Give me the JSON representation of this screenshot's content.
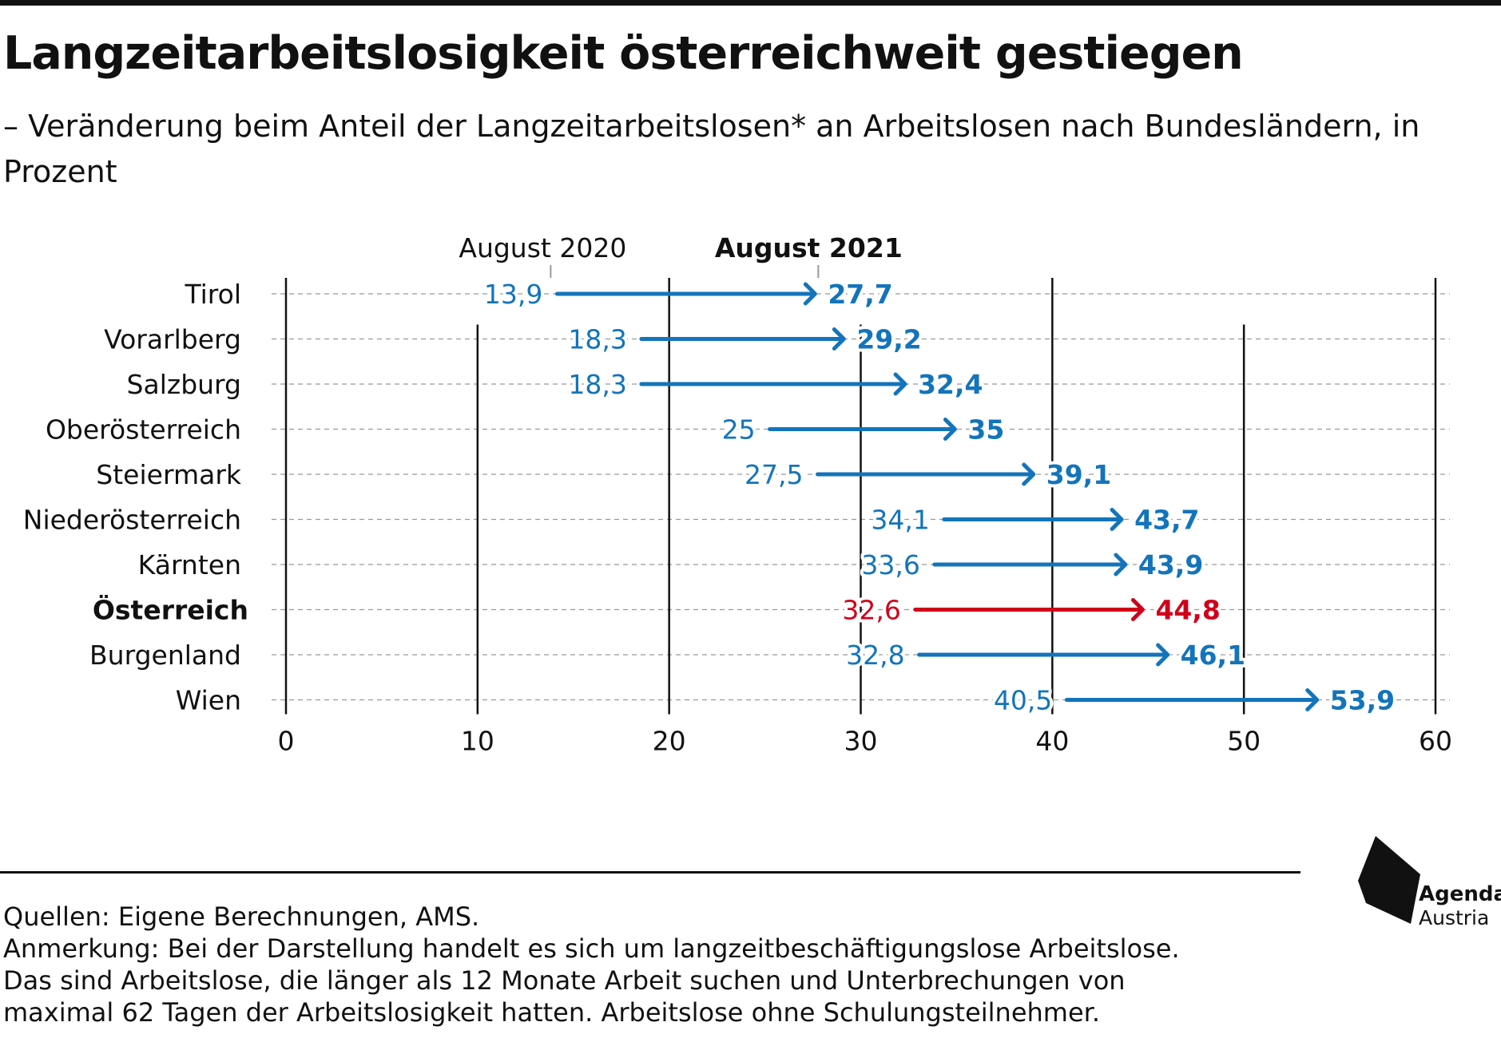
{
  "header": {
    "title": "Langzeitarbeitslosigkeit österreichweit gestiegen",
    "subtitle": "– Veränderung beim Anteil der Langzeitarbeitslosen* an Arbeitslosen nach Bundesländern, in Prozent"
  },
  "chart_data": {
    "type": "dumbbell-arrow",
    "series_labels": [
      "August 2020",
      "August 2021"
    ],
    "categories": [
      "Tirol",
      "Vorarlberg",
      "Salzburg",
      "Oberösterreich",
      "Steiermark",
      "Niederösterreich",
      "Kärnten",
      "Österreich",
      "Burgenland",
      "Wien"
    ],
    "from": [
      13.9,
      18.3,
      18.3,
      25,
      27.5,
      34.1,
      33.6,
      32.6,
      32.8,
      40.5
    ],
    "to": [
      27.7,
      29.2,
      32.4,
      35,
      39.1,
      43.7,
      43.9,
      44.8,
      46.1,
      53.9
    ],
    "from_labels": [
      "13,9",
      "18,3",
      "18,3",
      "25",
      "27,5",
      "34,1",
      "33,6",
      "32,6",
      "32,8",
      "40,5"
    ],
    "to_labels": [
      "27,7",
      "29,2",
      "32,4",
      "35",
      "39,1",
      "43,7",
      "43,9",
      "44,8",
      "46,1",
      "53,9"
    ],
    "highlight_category": "Österreich",
    "xlim": [
      0,
      60
    ],
    "xticks": [
      0,
      10,
      20,
      30,
      40,
      50,
      60
    ],
    "xlabel": "",
    "ylabel": "",
    "grid": true,
    "colors": {
      "default": "#1374BB",
      "highlight": "#D0021B",
      "text": "#111111",
      "gridline": "#999999"
    }
  },
  "footer": {
    "source": "Quellen: Eigene Berechnungen, AMS.",
    "note_lines": [
      "Anmerkung: Bei der Darstellung handelt es sich um langzeitbeschäftigungslose Arbeitslose.",
      "Das sind Arbeitslose, die länger als 12 Monate Arbeit suchen und Unterbrechungen von",
      "maximal 62 Tagen der Arbeitslosigkeit hatten. Arbeitslose ohne Schulungsteilnehmer."
    ]
  },
  "logo": {
    "line1": "Agenda",
    "line2": "Austria"
  }
}
